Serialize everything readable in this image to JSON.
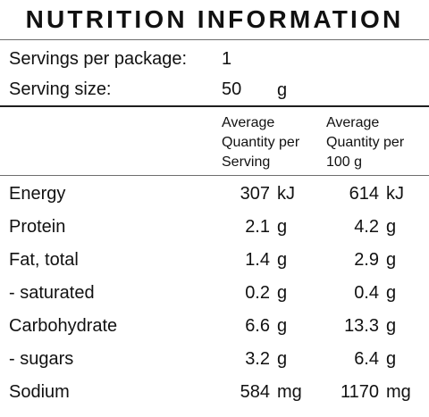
{
  "title": "NUTRITION INFORMATION",
  "servings_per_package": {
    "label": "Servings per package:",
    "value": "1"
  },
  "serving_size": {
    "label": "Serving size:",
    "value": "50",
    "unit": "g"
  },
  "columns": {
    "per_serving": [
      "Average",
      "Quantity per",
      "Serving"
    ],
    "per_100g": [
      "Average",
      "Quantity per",
      "100 g"
    ]
  },
  "rows": [
    {
      "name": "Energy",
      "per_serving": "307",
      "per_serving_unit": "kJ",
      "per_100g": "614",
      "per_100g_unit": "kJ"
    },
    {
      "name": "Protein",
      "per_serving": "2.1",
      "per_serving_unit": "g",
      "per_100g": "4.2",
      "per_100g_unit": "g"
    },
    {
      "name": "Fat, total",
      "per_serving": "1.4",
      "per_serving_unit": "g",
      "per_100g": "2.9",
      "per_100g_unit": "g"
    },
    {
      "name": "- saturated",
      "per_serving": "0.2",
      "per_serving_unit": "g",
      "per_100g": "0.4",
      "per_100g_unit": "g"
    },
    {
      "name": "Carbohydrate",
      "per_serving": "6.6",
      "per_serving_unit": "g",
      "per_100g": "13.3",
      "per_100g_unit": "g"
    },
    {
      "name": "- sugars",
      "per_serving": "3.2",
      "per_serving_unit": "g",
      "per_100g": "6.4",
      "per_100g_unit": "g"
    },
    {
      "name": "Sodium",
      "per_serving": "584",
      "per_serving_unit": "mg",
      "per_100g": "1170",
      "per_100g_unit": "mg"
    }
  ]
}
